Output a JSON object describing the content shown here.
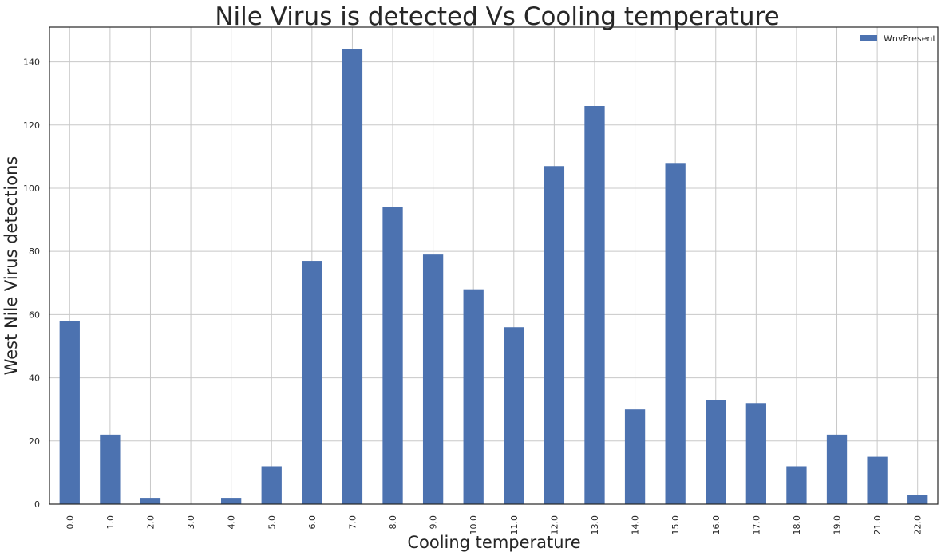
{
  "chart_data": {
    "type": "bar",
    "title": "Nile Virus is detected Vs Cooling temperature",
    "xlabel": "Cooling temperature",
    "ylabel": "West Nile Virus detections",
    "categories": [
      "0.0",
      "1.0",
      "2.0",
      "3.0",
      "4.0",
      "5.0",
      "6.0",
      "7.0",
      "8.0",
      "9.0",
      "10.0",
      "11.0",
      "12.0",
      "13.0",
      "14.0",
      "15.0",
      "16.0",
      "17.0",
      "18.0",
      "19.0",
      "21.0",
      "22.0"
    ],
    "series": [
      {
        "name": "WnvPresent",
        "color": "#4c72b0",
        "values": [
          58,
          22,
          2,
          0,
          2,
          12,
          77,
          144,
          94,
          79,
          68,
          56,
          107,
          126,
          30,
          108,
          33,
          32,
          12,
          22,
          15,
          3
        ]
      }
    ],
    "ylim": [
      0,
      151
    ],
    "yticks": [
      0,
      20,
      40,
      60,
      80,
      100,
      120,
      140
    ],
    "grid": true,
    "legend_position": "top-right"
  }
}
